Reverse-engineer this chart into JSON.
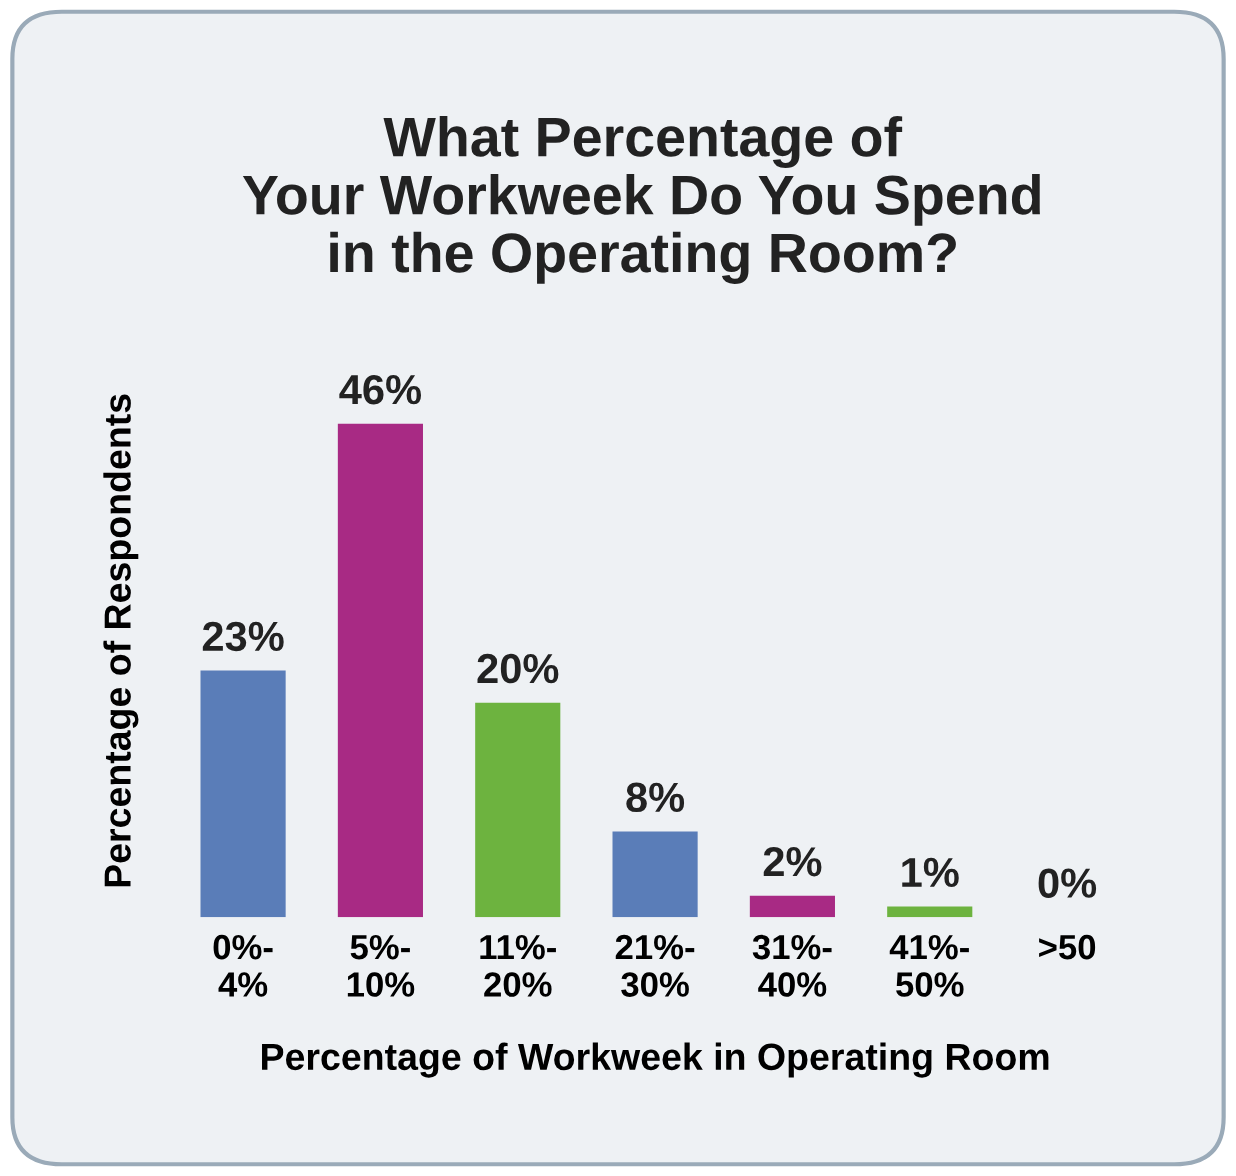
{
  "chart_data": {
    "type": "bar",
    "title": "What Percentage of\nYour Workweek Do You Spend\nin the Operating Room?",
    "xlabel": "Percentage of Workweek in Operating Room",
    "ylabel": "Percentage of Respondents",
    "categories": [
      "0%-\n4%",
      "5%-\n10%",
      "11%-\n20%",
      "21%-\n30%",
      "31%-\n40%",
      "41%-\n50%",
      ">50"
    ],
    "values": [
      23,
      46,
      20,
      8,
      2,
      1,
      0
    ],
    "colors": [
      "#5a7db8",
      "#a82a84",
      "#6db33f",
      "#5a7db8",
      "#a82a84",
      "#6db33f",
      "#5a7db8"
    ],
    "value_labels": [
      "23%",
      "46%",
      "20%",
      "8%",
      "2%",
      "1%",
      "0%"
    ],
    "tick_labels": "x",
    "grid": false
  }
}
